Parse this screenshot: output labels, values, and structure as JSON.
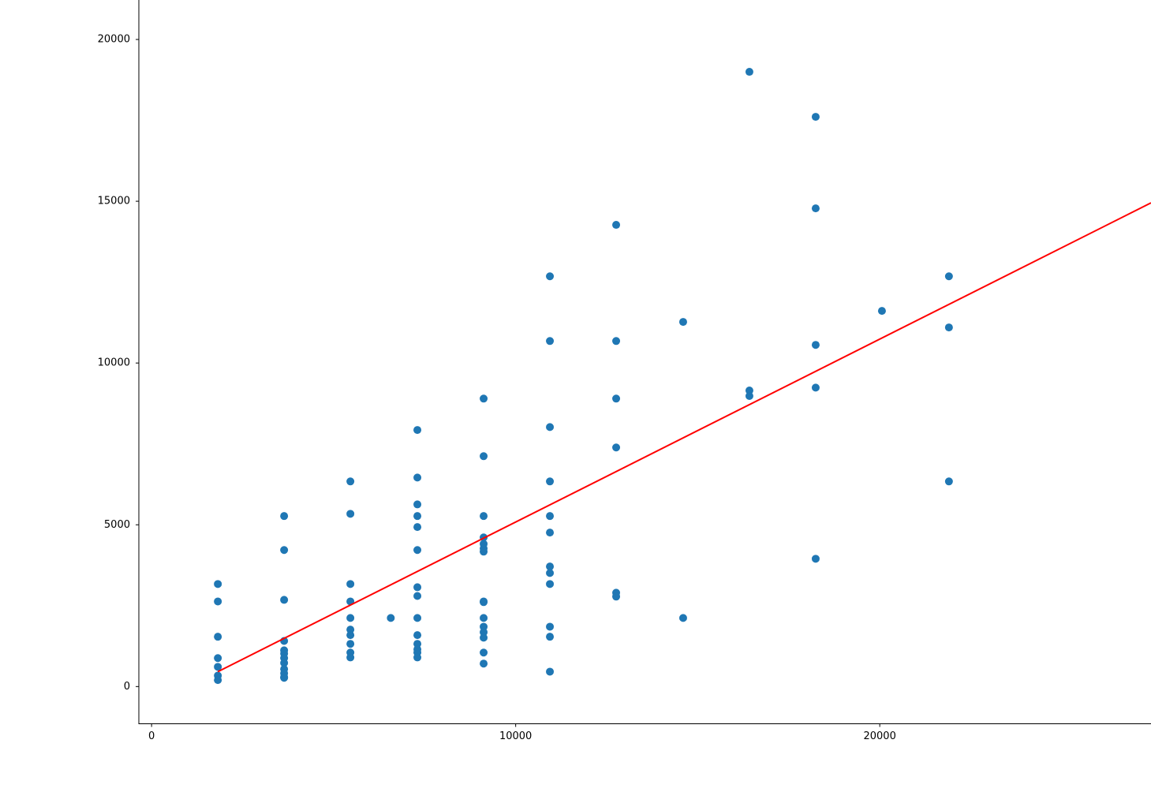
{
  "chart_data": {
    "type": "scatter",
    "xlim": [
      -350,
      27450
    ],
    "ylim": [
      -1150,
      21220
    ],
    "xticks": [
      0,
      10000,
      20000
    ],
    "yticks": [
      0,
      5000,
      10000,
      15000,
      20000
    ],
    "series": [
      {
        "color": "#1f77b4",
        "x": [
          1820,
          1820,
          1820,
          1820,
          1820,
          1820,
          1820,
          3640,
          3640,
          3640,
          3640,
          3640,
          3640,
          3640,
          3640,
          3640,
          3640,
          3640,
          3640,
          5460,
          5460,
          5460,
          5460,
          5460,
          5460,
          5460,
          5460,
          5460,
          5460,
          6570,
          7300,
          7300,
          7300,
          7300,
          7300,
          7300,
          7300,
          7300,
          7300,
          7300,
          7300,
          7300,
          7300,
          7300,
          9120,
          9120,
          9120,
          9120,
          9120,
          9120,
          9120,
          9120,
          9120,
          9120,
          9120,
          9120,
          9120,
          9120,
          9120,
          10940,
          10940,
          10940,
          10940,
          10940,
          10940,
          10940,
          10940,
          10940,
          10940,
          10940,
          10940,
          12760,
          12760,
          12760,
          12760,
          12760,
          12760,
          14600,
          14600,
          16420,
          16420,
          16420,
          18240,
          18240,
          18240,
          18240,
          18240,
          20060,
          21900,
          21900,
          21900
        ],
        "values": [
          3170,
          2630,
          1540,
          880,
          610,
          340,
          200,
          5270,
          4220,
          2680,
          1410,
          1120,
          1020,
          880,
          730,
          540,
          410,
          290,
          270,
          6340,
          5340,
          3170,
          2630,
          2120,
          1760,
          1590,
          1320,
          1050,
          900,
          2120,
          7930,
          6460,
          5630,
          5270,
          4930,
          4220,
          3070,
          2800,
          2120,
          1590,
          1320,
          1150,
          1050,
          900,
          8900,
          7120,
          5270,
          4610,
          4410,
          4270,
          4170,
          2630,
          2610,
          2120,
          1850,
          1680,
          1510,
          1050,
          710,
          12680,
          10680,
          8020,
          6340,
          5270,
          4760,
          3710,
          3510,
          3170,
          1850,
          1540,
          460,
          14270,
          10680,
          8900,
          7390,
          2900,
          2780,
          11270,
          2120,
          19000,
          9150,
          8980,
          17610,
          14780,
          10560,
          9240,
          3950,
          11610,
          12680,
          11100,
          6340
        ]
      },
      {
        "type": "line",
        "color": "#ff0000",
        "x": [
          1820,
          27450
        ],
        "values": [
          460,
          14950
        ]
      }
    ]
  }
}
